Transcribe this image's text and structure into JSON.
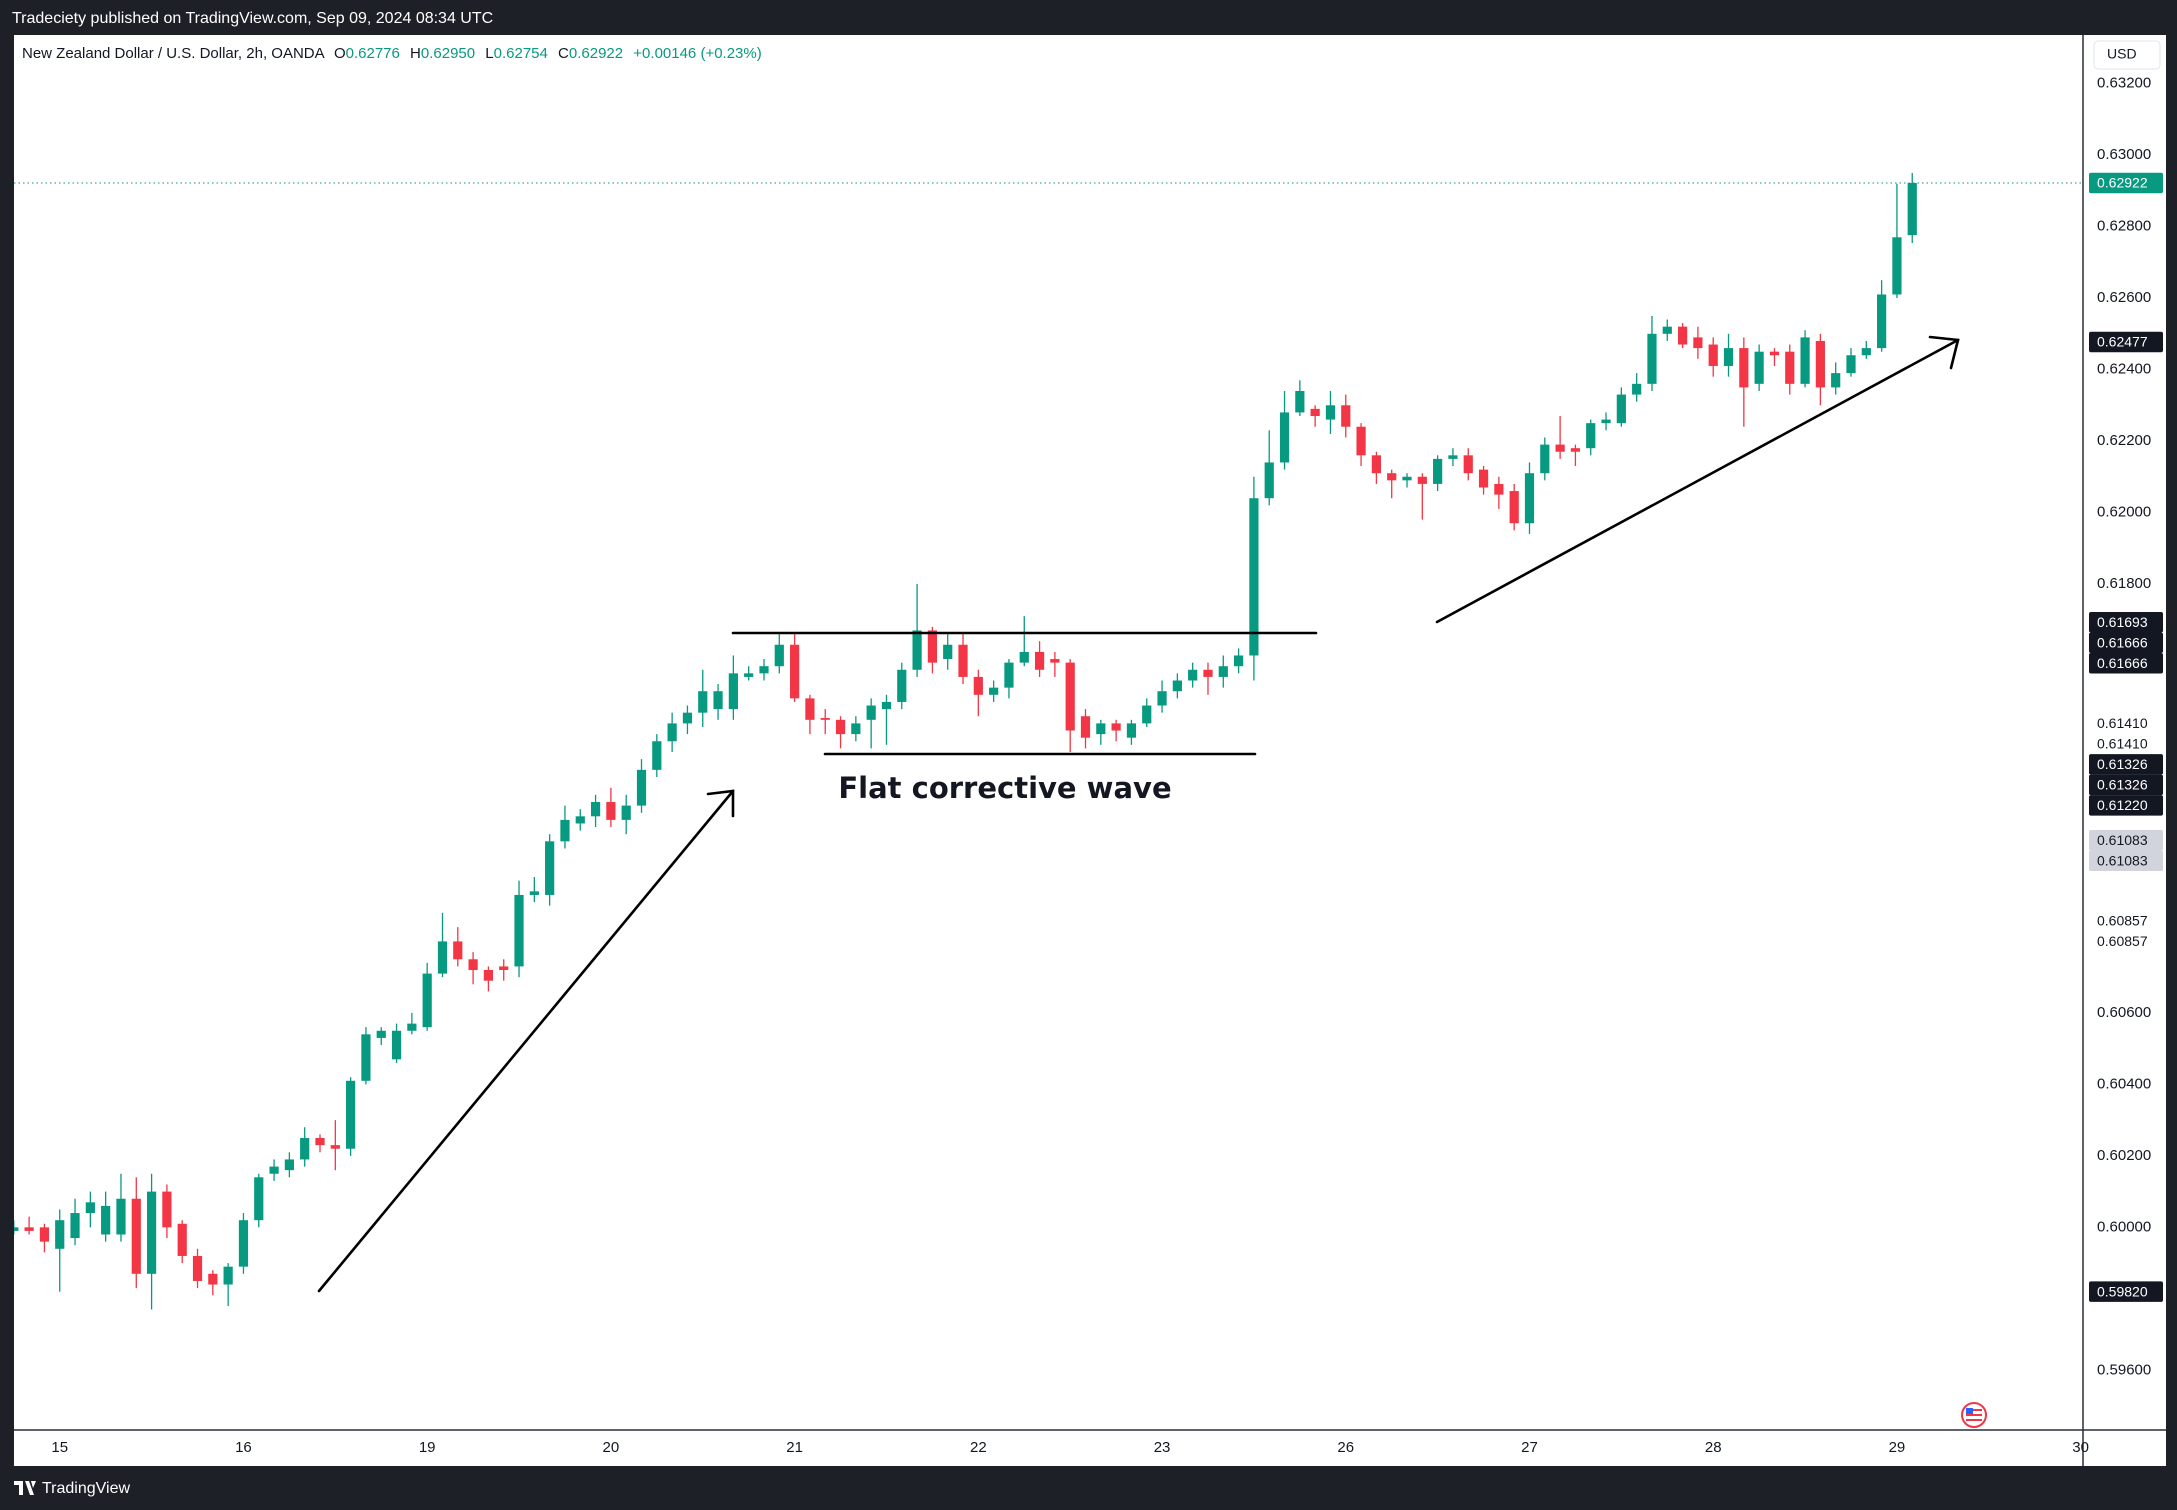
{
  "header": {
    "publisher": "Tradeciety published on TradingView.com, Sep 09, 2024 08:34 UTC",
    "brand": "TradingView",
    "currency": "USD"
  },
  "chart_data": {
    "type": "candlestick",
    "title": "New Zealand Dollar / U.S. Dollar, 2h, OANDA",
    "ohlc_letters": [
      "O",
      "H",
      "L",
      "C"
    ],
    "ohlc_labels": [
      "0.62776",
      "0.62950",
      "0.62754",
      "0.62922"
    ],
    "change": "+0.00146 (+0.23%)",
    "categories": [
      null,
      null,
      null,
      "15",
      null,
      null,
      null,
      null,
      null,
      null,
      null,
      null,
      null,
      null,
      null,
      "16",
      null,
      null,
      null,
      null,
      null,
      null,
      null,
      null,
      null,
      null,
      null,
      "19",
      null,
      null,
      null,
      null,
      null,
      null,
      null,
      null,
      null,
      null,
      null,
      "20",
      null,
      null,
      null,
      null,
      null,
      null,
      null,
      null,
      null,
      null,
      null,
      "21",
      null,
      null,
      null,
      null,
      null,
      null,
      null,
      null,
      null,
      null,
      null,
      "22",
      null,
      null,
      null,
      null,
      null,
      null,
      null,
      null,
      null,
      null,
      null,
      "23",
      null,
      null,
      null,
      null,
      null,
      null,
      null,
      null,
      null,
      null,
      null,
      "26",
      null,
      null,
      null,
      null,
      null,
      null,
      null,
      null,
      null,
      null,
      null,
      "27",
      null,
      null,
      null,
      null,
      null,
      null,
      null,
      null,
      null,
      null,
      null,
      "28",
      null,
      null,
      null,
      null,
      null,
      null,
      null,
      null,
      null,
      null,
      null,
      "29",
      null,
      null,
      null,
      null,
      null,
      null,
      null,
      null,
      null,
      null,
      null,
      "30"
    ],
    "open": [
      0.5999,
      0.6,
      0.6,
      0.5994,
      0.5997,
      0.6004,
      0.5998,
      0.5998,
      0.6008,
      0.5987,
      0.601,
      0.6001,
      0.5992,
      0.5987,
      0.5984,
      0.5989,
      0.6002,
      0.6015,
      0.6016,
      0.6019,
      0.6025,
      0.6023,
      0.6022,
      0.6041,
      0.6053,
      0.6047,
      0.6055,
      0.6056,
      0.6071,
      0.608,
      0.6075,
      0.6072,
      0.6073,
      0.6073,
      0.6093,
      0.6093,
      0.6108,
      0.6113,
      0.6115,
      0.6119,
      0.6114,
      0.6118,
      0.6128,
      0.6136,
      0.6141,
      0.6144,
      0.6145,
      0.6145,
      0.6154,
      0.6155,
      0.6157,
      0.6163,
      0.6148,
      0.61425,
      0.6142,
      0.6138,
      0.6142,
      0.6145,
      0.6147,
      0.6156,
      0.6167,
      0.6159,
      0.6163,
      0.6154,
      0.6149,
      0.6151,
      0.6158,
      0.6161,
      0.6159,
      0.6158,
      0.6143,
      0.6138,
      0.6141,
      0.6137,
      0.6141,
      0.6146,
      0.615,
      0.6153,
      0.6156,
      0.6154,
      0.6157,
      0.616,
      0.6204,
      0.6214,
      0.6228,
      0.6229,
      0.6226,
      0.623,
      0.6224,
      0.6216,
      0.6211,
      0.6209,
      0.621,
      0.6208,
      0.6215,
      0.6216,
      0.6212,
      0.6208,
      0.6206,
      0.6197,
      0.6211,
      0.6219,
      0.6218,
      0.6218,
      0.6225,
      0.6225,
      0.6233,
      0.6236,
      0.625,
      0.6252,
      0.6249,
      0.6247,
      0.6241,
      0.6246,
      0.6236,
      0.6245,
      0.6245,
      0.6236,
      0.6248,
      0.6235,
      0.6239,
      0.6244,
      0.6246,
      0.6261,
      0.62776,
      null,
      null,
      null,
      null,
      null,
      null,
      null,
      null,
      null,
      null,
      null
    ],
    "high": [
      0.6002,
      0.6003,
      0.6001,
      0.6005,
      0.6008,
      0.601,
      0.601,
      0.6015,
      0.6014,
      0.6015,
      0.6012,
      0.6002,
      0.5994,
      0.5988,
      0.599,
      0.6004,
      0.6015,
      0.6019,
      0.6021,
      0.6028,
      0.6026,
      0.603,
      0.6042,
      0.6056,
      0.6056,
      0.6057,
      0.606,
      0.6074,
      0.6088,
      0.6084,
      0.6077,
      0.6073,
      0.6075,
      0.6097,
      0.6098,
      0.611,
      0.6118,
      0.6117,
      0.6121,
      0.6123,
      0.6121,
      0.6131,
      0.6138,
      0.6144,
      0.6146,
      0.6156,
      0.6152,
      0.616,
      0.6157,
      0.6159,
      0.6166,
      0.6166,
      0.6149,
      0.6145,
      0.6143,
      0.6143,
      0.6148,
      0.6149,
      0.6158,
      0.618,
      0.6168,
      0.6166,
      0.6166,
      0.6156,
      0.6153,
      0.6159,
      0.6171,
      0.6164,
      0.6161,
      0.6159,
      0.6145,
      0.6142,
      0.6142,
      0.6142,
      0.6148,
      0.6153,
      0.6155,
      0.6158,
      0.6158,
      0.616,
      0.6162,
      0.621,
      0.6223,
      0.6234,
      0.6237,
      0.623,
      0.6234,
      0.6233,
      0.6225,
      0.6217,
      0.6212,
      0.6211,
      0.6211,
      0.6216,
      0.6218,
      0.6218,
      0.6213,
      0.621,
      0.6208,
      0.6214,
      0.6221,
      0.6227,
      0.6219,
      0.6226,
      0.6228,
      0.6235,
      0.6239,
      0.6255,
      0.6254,
      0.6253,
      0.6252,
      0.6249,
      0.625,
      0.6249,
      0.6247,
      0.6246,
      0.6247,
      0.6251,
      0.625,
      0.6242,
      0.6246,
      0.6248,
      0.6265,
      0.6292,
      0.6295,
      null,
      null,
      null,
      null,
      null,
      null,
      null,
      null,
      null,
      null,
      null
    ],
    "low": [
      0.5998,
      0.5998,
      0.5993,
      0.5982,
      0.5995,
      0.6,
      0.5996,
      0.5996,
      0.5983,
      0.5977,
      0.5997,
      0.599,
      0.5983,
      0.5981,
      0.5978,
      0.5987,
      0.6,
      0.6013,
      0.6014,
      0.6017,
      0.6021,
      0.6016,
      0.602,
      0.604,
      0.6051,
      0.6046,
      0.6054,
      0.6055,
      0.607,
      0.6073,
      0.6068,
      0.6066,
      0.6069,
      0.607,
      0.6091,
      0.609,
      0.6106,
      0.6111,
      0.6112,
      0.6112,
      0.611,
      0.6116,
      0.6126,
      0.6133,
      0.6138,
      0.614,
      0.6142,
      0.6142,
      0.6153,
      0.6153,
      0.6155,
      0.6147,
      0.6138,
      0.6138,
      0.6134,
      0.6136,
      0.6134,
      0.6135,
      0.6145,
      0.6154,
      0.6155,
      0.6156,
      0.6152,
      0.6143,
      0.6147,
      0.6148,
      0.6157,
      0.6154,
      0.6154,
      0.6133,
      0.6134,
      0.6135,
      0.6136,
      0.6135,
      0.614,
      0.6144,
      0.6148,
      0.6151,
      0.6149,
      0.6151,
      0.6155,
      0.6153,
      0.6202,
      0.6212,
      0.6227,
      0.6224,
      0.6222,
      0.6221,
      0.6213,
      0.6208,
      0.6204,
      0.6207,
      0.6198,
      0.6206,
      0.6213,
      0.6209,
      0.6205,
      0.6201,
      0.6195,
      0.6194,
      0.6209,
      0.6215,
      0.6213,
      0.6216,
      0.6223,
      0.6224,
      0.6231,
      0.6234,
      0.6248,
      0.6246,
      0.6243,
      0.6238,
      0.6238,
      0.6224,
      0.6234,
      0.6241,
      0.6233,
      0.6235,
      0.623,
      0.6233,
      0.6238,
      0.6243,
      0.6245,
      0.626,
      0.62754,
      null,
      null,
      null,
      null,
      null,
      null,
      null,
      null,
      null,
      null,
      null
    ],
    "close": [
      0.6,
      0.5999,
      0.5996,
      0.6002,
      0.6004,
      0.6007,
      0.6006,
      0.6008,
      0.5987,
      0.601,
      0.6,
      0.5992,
      0.5985,
      0.5984,
      0.5989,
      0.6002,
      0.6014,
      0.6017,
      0.6019,
      0.6025,
      0.6023,
      0.6022,
      0.6041,
      0.6054,
      0.6055,
      0.6055,
      0.6057,
      0.6071,
      0.608,
      0.6075,
      0.6072,
      0.6069,
      0.6072,
      0.6093,
      0.6094,
      0.6108,
      0.6114,
      0.6115,
      0.6119,
      0.6114,
      0.6118,
      0.6128,
      0.6136,
      0.6141,
      0.6144,
      0.615,
      0.615,
      0.6155,
      0.6155,
      0.6157,
      0.6163,
      0.6148,
      0.6142,
      0.6142,
      0.6138,
      0.6141,
      0.6146,
      0.6147,
      0.6156,
      0.6167,
      0.6158,
      0.6163,
      0.6154,
      0.6149,
      0.6151,
      0.6158,
      0.6161,
      0.6156,
      0.6158,
      0.6139,
      0.6137,
      0.6141,
      0.6139,
      0.6141,
      0.6146,
      0.615,
      0.6153,
      0.6156,
      0.6154,
      0.6157,
      0.616,
      0.6204,
      0.6214,
      0.6228,
      0.6234,
      0.6227,
      0.623,
      0.6224,
      0.6216,
      0.6211,
      0.6209,
      0.621,
      0.6208,
      0.6215,
      0.6216,
      0.6211,
      0.6207,
      0.6205,
      0.6197,
      0.6211,
      0.6219,
      0.6217,
      0.6217,
      0.6225,
      0.6226,
      0.6233,
      0.6236,
      0.625,
      0.6252,
      0.6247,
      0.6246,
      0.6241,
      0.6246,
      0.6235,
      0.6245,
      0.6244,
      0.6236,
      0.6249,
      0.6235,
      0.6239,
      0.6244,
      0.6246,
      0.6261,
      0.6277,
      0.62922,
      null,
      null,
      null,
      null,
      null,
      null,
      null,
      null,
      null,
      null,
      null
    ],
    "up_color": "#089981",
    "down_color": "#f23645",
    "ylim": [
      0.59433,
      0.63336
    ],
    "yticks": [
      {
        "value": 0.632,
        "label": "0.63200"
      },
      {
        "value": 0.63,
        "label": "0.63000"
      },
      {
        "value": 0.628,
        "label": "0.62800"
      },
      {
        "value": 0.626,
        "label": "0.62600"
      },
      {
        "value": 0.624,
        "label": "0.62400"
      },
      {
        "value": 0.622,
        "label": "0.62200"
      },
      {
        "value": 0.62,
        "label": "0.62000"
      },
      {
        "value": 0.618,
        "label": "0.61800"
      },
      {
        "value": 0.606,
        "label": "0.60600"
      },
      {
        "value": 0.604,
        "label": "0.60400"
      },
      {
        "value": 0.602,
        "label": "0.60200"
      },
      {
        "value": 0.6,
        "label": "0.60000"
      },
      {
        "value": 0.596,
        "label": "0.59600"
      }
    ],
    "grid": false,
    "last_price_line": true,
    "price_markers": [
      {
        "value": 0.62922,
        "label": "0.62922",
        "background": "#089981",
        "color": "#ffffff"
      },
      {
        "value": 0.62477,
        "label": "0.62477",
        "background": "#131722",
        "color": "#ffffff"
      },
      {
        "value": 0.61693,
        "label": "0.61693",
        "background": "#131722",
        "color": "#ffffff"
      },
      {
        "value": 0.61666,
        "label": "0.61666",
        "background": "#131722",
        "color": "#ffffff"
      },
      {
        "value": 0.61666,
        "label": "0.61666",
        "background": "#131722",
        "color": "#ffffff"
      },
      {
        "value": 0.6141,
        "label": "0.61410",
        "background": "#ffffff",
        "color": "#131722"
      },
      {
        "value": 0.6141,
        "label": "0.61410",
        "background": "#ffffff",
        "color": "#131722"
      },
      {
        "value": 0.61326,
        "label": "0.61326",
        "background": "#131722",
        "color": "#ffffff"
      },
      {
        "value": 0.61326,
        "label": "0.61326",
        "background": "#131722",
        "color": "#ffffff"
      },
      {
        "value": 0.6122,
        "label": "0.61220",
        "background": "#131722",
        "color": "#ffffff"
      },
      {
        "value": 0.61083,
        "label": "0.61083",
        "background": "#d1d4dc",
        "color": "#131722"
      },
      {
        "value": 0.61083,
        "label": "0.61083",
        "background": "#d1d4dc",
        "color": "#131722"
      },
      {
        "value": 0.60857,
        "label": "0.60857",
        "background": "#ffffff",
        "color": "#131722"
      },
      {
        "value": 0.60857,
        "label": "0.60857",
        "background": "#ffffff",
        "color": "#131722"
      },
      {
        "value": 0.5982,
        "label": "0.59820",
        "background": "#131722",
        "color": "#ffffff"
      }
    ],
    "annotation": "Flat corrective wave"
  }
}
